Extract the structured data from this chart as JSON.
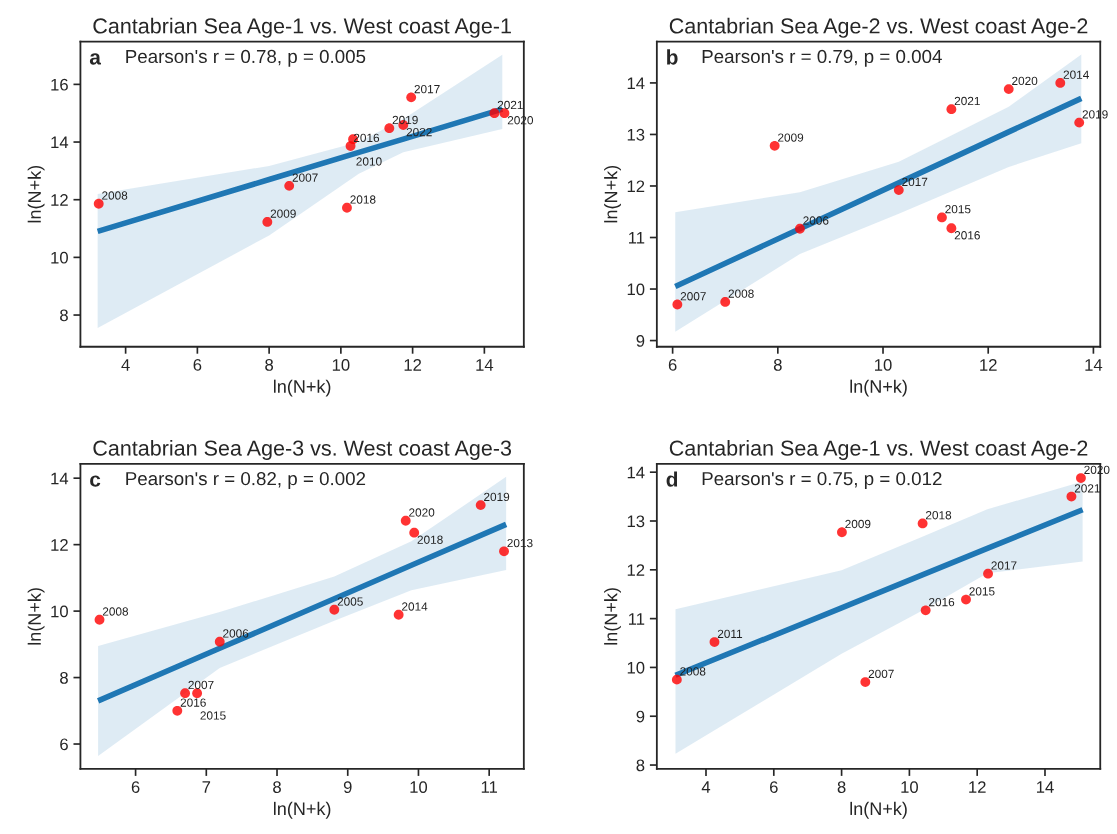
{
  "chart_data": [
    {
      "type": "scatter",
      "title": "Cantabrian Sea Age-1 vs. West coast Age-1",
      "xlabel": "ln(N+k)",
      "ylabel": "ln(N+k)",
      "xlim": [
        2.74,
        15.1
      ],
      "ylim": [
        6.9,
        17.48
      ],
      "xticks": [
        4,
        6,
        8,
        10,
        12,
        14
      ],
      "yticks": [
        8,
        10,
        12,
        14,
        16
      ],
      "annotations": [
        "a",
        "Pearson's r = 0.78, p = 0.005",
        {
          "text": "2008",
          "x": 3.25,
          "y": 11.86
        },
        {
          "text": "2009",
          "x": 7.95,
          "y": 11.23
        },
        {
          "text": "2007",
          "x": 8.56,
          "y": 12.48
        },
        {
          "text": "2018",
          "x": 10.17,
          "y": 11.72
        },
        {
          "text": "2016",
          "x": 10.27,
          "y": 13.86
        },
        {
          "text": "2010",
          "x": 10.34,
          "y": 14.1
        },
        {
          "text": "2019",
          "x": 11.35,
          "y": 14.48
        },
        {
          "text": "2022",
          "x": 11.74,
          "y": 14.59
        },
        {
          "text": "2017",
          "x": 11.96,
          "y": 15.55
        },
        {
          "text": "2021",
          "x": 14.28,
          "y": 15.0
        },
        {
          "text": "2020",
          "x": 14.56,
          "y": 15.0
        }
      ],
      "series": [
        {
          "color": "#ff0000",
          "marker": "circle",
          "x": [
            3.25,
            7.95,
            8.56,
            10.17,
            10.27,
            10.34,
            11.35,
            11.74,
            11.96,
            14.28,
            14.56
          ],
          "values": [
            11.86,
            11.23,
            12.48,
            11.72,
            13.86,
            14.1,
            14.48,
            14.59,
            15.55,
            15.0,
            15.0
          ]
        },
        {
          "type": "line",
          "color": "#1f77b4",
          "x": [
            3.22,
            8.0,
            10.5,
            11.74,
            14.5
          ],
          "values": [
            10.9,
            12.7,
            13.64,
            14.1,
            15.14
          ],
          "lower": [
            7.55,
            10.76,
            12.9,
            13.65,
            14.45
          ],
          "upper": [
            12.2,
            13.17,
            14.0,
            14.8,
            17.03
          ]
        }
      ]
    },
    {
      "type": "scatter",
      "title": "Cantabrian Sea Age-2 vs. West coast Age-2",
      "xlabel": "ln(N+k)",
      "ylabel": "ln(N+k)",
      "xlim": [
        5.7,
        14.13
      ],
      "ylim": [
        8.88,
        14.8
      ],
      "xticks": [
        6,
        8,
        10,
        12,
        14
      ],
      "yticks": [
        9,
        10,
        11,
        12,
        13,
        14
      ],
      "annotations": [
        "b",
        "Pearson's r = 0.79, p = 0.004",
        {
          "text": "2007",
          "x": 6.09,
          "y": 9.7
        },
        {
          "text": "2008",
          "x": 7.0,
          "y": 9.75
        },
        {
          "text": "2009",
          "x": 7.94,
          "y": 12.78
        },
        {
          "text": "2006",
          "x": 8.42,
          "y": 11.17
        },
        {
          "text": "2017",
          "x": 10.3,
          "y": 11.92
        },
        {
          "text": "2015",
          "x": 11.12,
          "y": 11.39
        },
        {
          "text": "2016",
          "x": 11.3,
          "y": 11.18
        },
        {
          "text": "2021",
          "x": 11.3,
          "y": 13.49
        },
        {
          "text": "2020",
          "x": 12.39,
          "y": 13.88
        },
        {
          "text": "2014",
          "x": 13.37,
          "y": 14.0
        },
        {
          "text": "2019",
          "x": 13.73,
          "y": 13.23
        }
      ],
      "series": [
        {
          "color": "#ff0000",
          "marker": "circle",
          "x": [
            6.09,
            7.0,
            7.94,
            8.42,
            10.3,
            11.12,
            11.3,
            11.3,
            12.39,
            13.37,
            13.73
          ],
          "values": [
            9.7,
            9.75,
            12.78,
            11.17,
            11.92,
            11.39,
            11.18,
            13.49,
            13.88,
            14.0,
            13.23
          ]
        },
        {
          "type": "line",
          "color": "#1f77b4",
          "x": [
            6.05,
            8.42,
            10.3,
            12.39,
            13.77
          ],
          "values": [
            10.05,
            11.17,
            12.06,
            13.05,
            13.7
          ],
          "lower": [
            9.17,
            10.68,
            11.46,
            12.37,
            12.83
          ],
          "upper": [
            11.49,
            11.88,
            12.47,
            13.54,
            14.55
          ]
        }
      ]
    },
    {
      "type": "scatter",
      "title": "Cantabrian Sea Age-3 vs. West coast Age-3",
      "xlabel": "ln(N+k)",
      "ylabel": "ln(N+k)",
      "xlim": [
        5.22,
        11.49
      ],
      "ylim": [
        5.25,
        14.43
      ],
      "xticks": [
        6,
        7,
        8,
        9,
        10,
        11
      ],
      "yticks": [
        6,
        8,
        10,
        12,
        14
      ],
      "annotations": [
        "c",
        "Pearson's r = 0.82, p = 0.002",
        {
          "text": "2008",
          "x": 5.49,
          "y": 9.74
        },
        {
          "text": "2016",
          "x": 6.59,
          "y": 7.0
        },
        {
          "text": "2007",
          "x": 6.7,
          "y": 7.53
        },
        {
          "text": "2015",
          "x": 6.87,
          "y": 7.53
        },
        {
          "text": "2006",
          "x": 7.19,
          "y": 9.08
        },
        {
          "text": "2005",
          "x": 8.81,
          "y": 10.04
        },
        {
          "text": "2014",
          "x": 9.72,
          "y": 9.89
        },
        {
          "text": "2020",
          "x": 9.82,
          "y": 12.72
        },
        {
          "text": "2018",
          "x": 9.94,
          "y": 12.36
        },
        {
          "text": "2019",
          "x": 10.88,
          "y": 13.19
        },
        {
          "text": "2013",
          "x": 11.21,
          "y": 11.8
        }
      ],
      "series": [
        {
          "color": "#ff0000",
          "marker": "circle",
          "x": [
            5.49,
            6.59,
            6.7,
            6.87,
            7.19,
            8.81,
            9.72,
            9.82,
            9.94,
            10.88,
            11.21
          ],
          "values": [
            9.74,
            7.0,
            7.53,
            7.53,
            9.08,
            10.04,
            9.89,
            12.72,
            12.36,
            13.19,
            11.8
          ]
        },
        {
          "type": "line",
          "color": "#1f77b4",
          "x": [
            5.47,
            7.19,
            8.81,
            9.9,
            11.24
          ],
          "values": [
            7.3,
            8.88,
            10.37,
            11.38,
            12.61
          ],
          "lower": [
            5.64,
            8.29,
            9.71,
            10.63,
            11.24
          ],
          "upper": [
            8.95,
            9.97,
            11.04,
            12.1,
            14.04
          ]
        }
      ]
    },
    {
      "type": "scatter",
      "title": "Cantabrian Sea Age-1 vs. West coast Age-2",
      "xlabel": "ln(N+k)",
      "ylabel": "ln(N+k)",
      "xlim": [
        2.55,
        15.63
      ],
      "ylim": [
        7.92,
        14.17
      ],
      "xticks": [
        4,
        6,
        8,
        10,
        12,
        14
      ],
      "yticks": [
        8,
        9,
        10,
        11,
        12,
        13,
        14
      ],
      "annotations": [
        "d",
        "Pearson's r = 0.75, p = 0.012",
        {
          "text": "2008",
          "x": 3.14,
          "y": 9.75
        },
        {
          "text": "2011",
          "x": 4.25,
          "y": 10.52
        },
        {
          "text": "2009",
          "x": 8.01,
          "y": 12.77
        },
        {
          "text": "2007",
          "x": 8.7,
          "y": 9.7
        },
        {
          "text": "2018",
          "x": 10.39,
          "y": 12.95
        },
        {
          "text": "2016",
          "x": 10.48,
          "y": 11.17
        },
        {
          "text": "2015",
          "x": 11.67,
          "y": 11.39
        },
        {
          "text": "2017",
          "x": 12.32,
          "y": 11.92
        },
        {
          "text": "2021",
          "x": 14.78,
          "y": 13.5
        },
        {
          "text": "2020",
          "x": 15.06,
          "y": 13.88
        }
      ],
      "series": [
        {
          "color": "#ff0000",
          "marker": "circle",
          "x": [
            3.14,
            4.25,
            8.01,
            8.7,
            10.39,
            10.48,
            11.67,
            12.32,
            14.78,
            15.06
          ],
          "values": [
            9.75,
            10.52,
            12.77,
            9.7,
            12.95,
            11.17,
            11.39,
            11.92,
            13.5,
            13.88
          ]
        },
        {
          "type": "line",
          "color": "#1f77b4",
          "x": [
            3.1,
            8.0,
            10.4,
            12.3,
            15.11
          ],
          "values": [
            9.84,
            11.22,
            11.9,
            12.44,
            13.23
          ],
          "lower": [
            8.23,
            10.28,
            11.17,
            11.93,
            12.17
          ],
          "upper": [
            11.19,
            11.99,
            12.68,
            13.24,
            13.81
          ]
        }
      ]
    }
  ]
}
